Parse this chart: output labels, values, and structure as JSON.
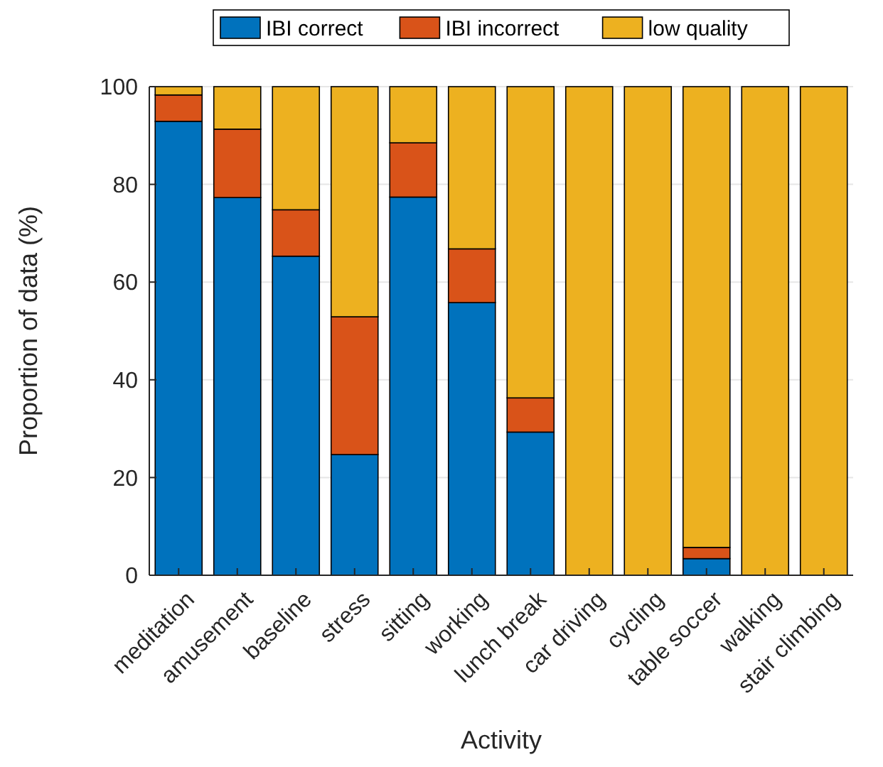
{
  "chart_data": {
    "type": "bar",
    "stacked": true,
    "xlabel": "Activity",
    "ylabel": "Proportion of data (%)",
    "categories": [
      "meditation",
      "amusement",
      "baseline",
      "stress",
      "sitting",
      "working",
      "lunch break",
      "car driving",
      "cycling",
      "table soccer",
      "walking",
      "stair climbing"
    ],
    "series": [
      {
        "name": "IBI correct",
        "color": "#0072bd",
        "values": [
          92.9,
          77.3,
          65.3,
          24.7,
          77.4,
          55.8,
          29.3,
          null,
          0,
          3.4,
          null,
          0
        ]
      },
      {
        "name": "IBI incorrect",
        "color": "#d95319",
        "values": [
          5.4,
          14.0,
          9.5,
          28.2,
          11.1,
          11.0,
          7.0,
          0,
          0,
          2.3,
          0,
          0
        ]
      },
      {
        "name": "low quality",
        "color": "#edb120",
        "values": [
          1.7,
          8.7,
          25.2,
          47.1,
          11.5,
          33.2,
          63.7,
          100,
          100,
          94.3,
          100,
          100
        ]
      }
    ],
    "ylim": [
      0,
      100
    ],
    "yticks": [
      0,
      20,
      40,
      60,
      80,
      100
    ],
    "grid": "y",
    "legend": "top"
  }
}
